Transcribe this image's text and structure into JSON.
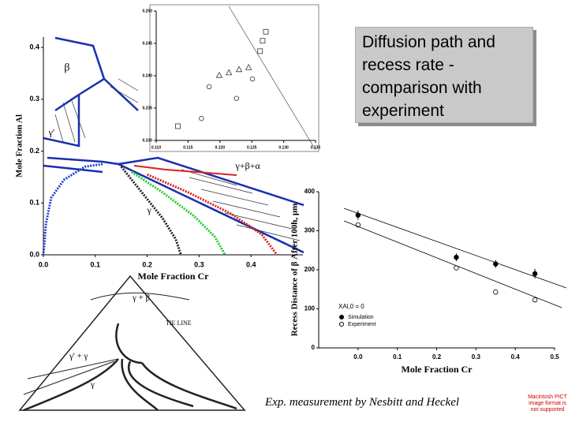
{
  "title_box": "Diffusion path and recess rate - comparison with experiment",
  "caption": "Exp. measurement by Nesbitt and Heckel",
  "image_note": "Macintosh PICT image format is not supported",
  "ternary_labels": [
    "γ + β",
    "γ' + γ",
    "γ",
    "TIE LINE"
  ],
  "chart_data": [
    {
      "type": "line",
      "xlabel": "Mole Fraction Cr",
      "ylabel": "Mole Fraction Al",
      "xlim": [
        0,
        0.5
      ],
      "ylim": [
        0,
        0.42
      ],
      "xticks": [
        {
          "value": 0,
          "label": "0.0"
        },
        0.1,
        0.2,
        0.3,
        0.4
      ],
      "yticks": [
        {
          "value": 0,
          "label": "0.0"
        },
        0.1,
        0.2,
        0.3,
        0.4
      ],
      "annotations": [
        "β",
        "γ'",
        "γ",
        "γ+β+α"
      ],
      "series": [
        {
          "color": "#1f3fd0",
          "x": [
            0.114,
            0.08,
            0.04,
            0.015,
            0.005,
            0
          ],
          "values": [
            0.175,
            0.17,
            0.145,
            0.11,
            0.06,
            0
          ]
        },
        {
          "color": "#222222",
          "x": [
            0.15,
            0.19,
            0.23,
            0.255,
            0.265
          ],
          "values": [
            0.17,
            0.12,
            0.07,
            0.03,
            0
          ]
        },
        {
          "color": "#22cc22",
          "x": [
            0.17,
            0.23,
            0.29,
            0.33,
            0.35
          ],
          "values": [
            0.16,
            0.12,
            0.075,
            0.035,
            0
          ]
        },
        {
          "color": "#dd2020",
          "x": [
            0.2,
            0.28,
            0.36,
            0.42,
            0.45
          ],
          "values": [
            0.155,
            0.12,
            0.08,
            0.04,
            0
          ]
        }
      ]
    },
    {
      "type": "scatter",
      "xlim": [
        0.11,
        0.135
      ],
      "ylim": [
        0.23,
        0.25
      ],
      "xticks": [
        {
          "value": 0.11,
          "label": "0.110"
        },
        {
          "value": 0.115,
          "label": "0.115"
        },
        {
          "value": 0.12,
          "label": "0.120"
        },
        {
          "value": 0.125,
          "label": "0.125"
        },
        {
          "value": 0.13,
          "label": "0.130"
        },
        {
          "value": 0.135,
          "label": "0.135"
        }
      ],
      "yticks": [
        {
          "value": 0.23,
          "label": "0.230"
        },
        {
          "value": 0.235,
          "label": "0.235"
        },
        {
          "value": 0.24,
          "label": "0.240"
        },
        {
          "value": 0.245,
          "label": "0.245"
        },
        {
          "value": 0.25,
          "label": "0.250"
        }
      ],
      "series": [
        {
          "marker": "square",
          "color": "#333333",
          "x": [
            0.1272,
            0.1267,
            0.1263,
            0.1134
          ],
          "values": [
            0.2468,
            0.2454,
            0.2438,
            0.2322
          ]
        },
        {
          "marker": "triangle",
          "color": "#333333",
          "x": [
            0.1199,
            0.1214,
            0.123,
            0.1245
          ],
          "values": [
            0.2401,
            0.2405,
            0.241,
            0.2413
          ]
        },
        {
          "marker": "circle",
          "color": "#333333",
          "x": [
            0.1183,
            0.1171,
            0.1226,
            0.1251
          ],
          "values": [
            0.2383,
            0.2334,
            0.2365,
            0.2395
          ]
        }
      ]
    },
    {
      "type": "scatter",
      "xlabel": "Mole Fraction Cr",
      "ylabel": "Recess Distance of β After 100h, μm",
      "xlim": [
        -0.1,
        0.5
      ],
      "ylim": [
        0,
        400
      ],
      "xticks": [
        {
          "value": 0,
          "label": "0.0"
        },
        0.1,
        0.2,
        0.3,
        0.4,
        0.5
      ],
      "yticks": [
        0,
        100,
        200,
        300,
        400
      ],
      "legend_title": "XAl,0 = 0",
      "legend": "lower-left",
      "series": [
        {
          "name": "Simulation",
          "marker": "filled",
          "color": "#000000",
          "x": [
            0,
            0.25,
            0.35,
            0.45
          ],
          "values": [
            340,
            232,
            215,
            190
          ],
          "errors": [
            12,
            10,
            10,
            12
          ]
        },
        {
          "name": "Experiment",
          "marker": "circle",
          "color": "#000000",
          "x": [
            0,
            0.25,
            0.35,
            0.45
          ],
          "values": [
            315,
            205,
            143,
            123
          ]
        }
      ]
    }
  ]
}
